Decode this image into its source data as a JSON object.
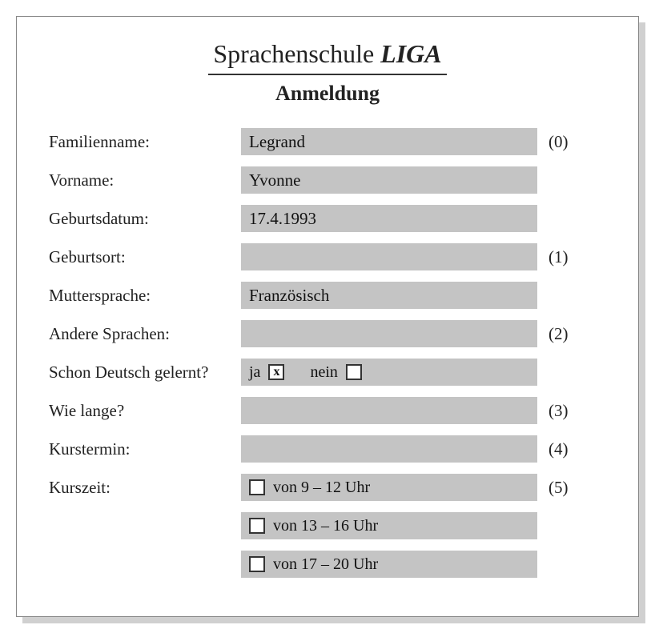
{
  "header": {
    "title_prefix": "Sprachenschule",
    "title_brand": "LIGA",
    "subtitle": "Anmeldung"
  },
  "form": {
    "rows": [
      {
        "label": "Familienname:",
        "type": "text",
        "value": "Legrand",
        "marker": "(0)"
      },
      {
        "label": "Vorname:",
        "type": "text",
        "value": "Yvonne",
        "marker": ""
      },
      {
        "label": "Geburtsdatum:",
        "type": "text",
        "value": "17.4.1993",
        "marker": ""
      },
      {
        "label": "Geburtsort:",
        "type": "text",
        "value": "",
        "marker": "(1)"
      },
      {
        "label": "Muttersprache:",
        "type": "text",
        "value": "Französisch",
        "marker": ""
      },
      {
        "label": "Andere Sprachen:",
        "type": "text",
        "value": "",
        "marker": "(2)"
      },
      {
        "label": "Schon Deutsch gelernt?",
        "type": "yesno",
        "yes_label": "ja",
        "yes_checked": true,
        "no_label": "nein",
        "no_checked": false,
        "marker": ""
      },
      {
        "label": "Wie lange?",
        "type": "text",
        "value": "",
        "marker": "(3)"
      },
      {
        "label": "Kurstermin:",
        "type": "text",
        "value": "",
        "marker": "(4)"
      },
      {
        "label": "Kurszeit:",
        "type": "timeslots",
        "marker": "(5)",
        "options": [
          {
            "checked": false,
            "label": "von 9 – 12 Uhr"
          },
          {
            "checked": false,
            "label": "von 13 – 16 Uhr"
          },
          {
            "checked": false,
            "label": "von 17 – 20 Uhr"
          }
        ]
      }
    ]
  },
  "style": {
    "field_bg": "#c4c4c4",
    "card_bg": "#ffffff",
    "border_color": "#888888",
    "shadow_color": "#d0d0d0",
    "text_color": "#222222",
    "label_fontsize": 21,
    "title_fontsize": 32,
    "subtitle_fontsize": 26
  }
}
